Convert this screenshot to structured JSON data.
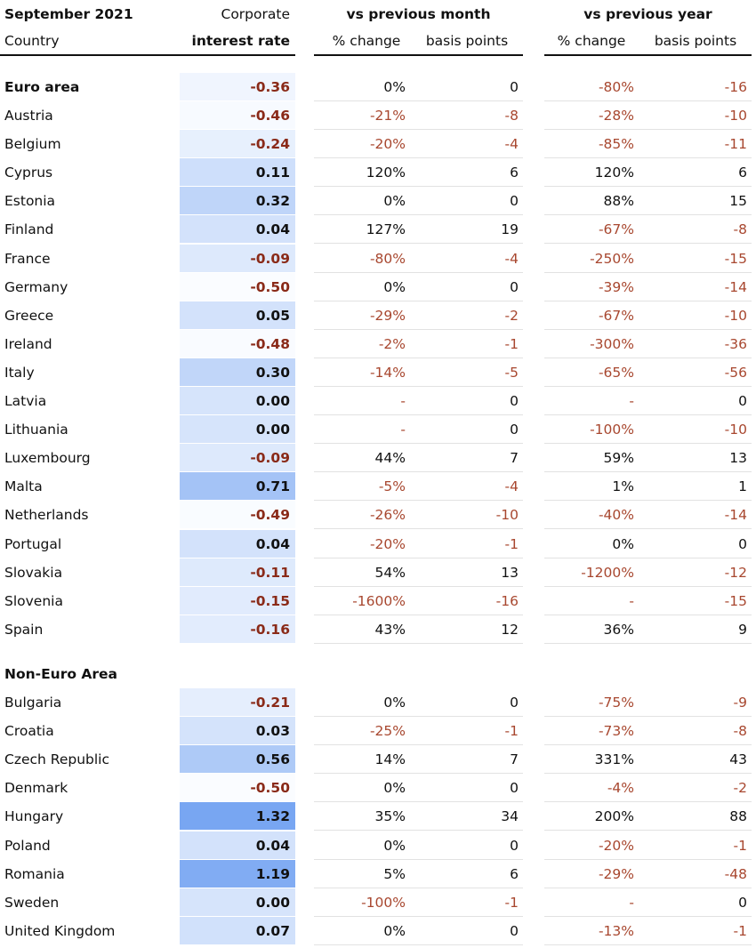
{
  "header": {
    "period": "September 2021",
    "country": "Country",
    "rate_top": "Corporate",
    "rate_bottom": "interest rate",
    "month_group": "vs previous month",
    "year_group": "vs previous year",
    "month_pct": "% change",
    "month_bp": "basis points",
    "year_pct": "% change",
    "year_bp": "basis points"
  },
  "euro_area": {
    "total": [
      "Euro area",
      "-0.36",
      "0%",
      "0",
      "-80%",
      "-16"
    ],
    "rows": [
      [
        "Austria",
        "-0.46",
        "-21%",
        "-8",
        "-28%",
        "-10"
      ],
      [
        "Belgium",
        "-0.24",
        "-20%",
        "-4",
        "-85%",
        "-11"
      ],
      [
        "Cyprus",
        "0.11",
        "120%",
        "6",
        "120%",
        "6"
      ],
      [
        "Estonia",
        "0.32",
        "0%",
        "0",
        "88%",
        "15"
      ],
      [
        "Finland",
        "0.04",
        "127%",
        "19",
        "-67%",
        "-8"
      ],
      [
        "France",
        "-0.09",
        "-80%",
        "-4",
        "-250%",
        "-15"
      ],
      [
        "Germany",
        "-0.50",
        "0%",
        "0",
        "-39%",
        "-14"
      ],
      [
        "Greece",
        "0.05",
        "-29%",
        "-2",
        "-67%",
        "-10"
      ],
      [
        "Ireland",
        "-0.48",
        "-2%",
        "-1",
        "-300%",
        "-36"
      ],
      [
        "Italy",
        "0.30",
        "-14%",
        "-5",
        "-65%",
        "-56"
      ],
      [
        "Latvia",
        "0.00",
        "-",
        "0",
        "-",
        "0"
      ],
      [
        "Lithuania",
        "0.00",
        "-",
        "0",
        "-100%",
        "-10"
      ],
      [
        "Luxembourg",
        "-0.09",
        "44%",
        "7",
        "59%",
        "13"
      ],
      [
        "Malta",
        "0.71",
        "-5%",
        "-4",
        "1%",
        "1"
      ],
      [
        "Netherlands",
        "-0.49",
        "-26%",
        "-10",
        "-40%",
        "-14"
      ],
      [
        "Portugal",
        "0.04",
        "-20%",
        "-1",
        "0%",
        "0"
      ],
      [
        "Slovakia",
        "-0.11",
        "54%",
        "13",
        "-1200%",
        "-12"
      ],
      [
        "Slovenia",
        "-0.15",
        "-1600%",
        "-16",
        "-",
        "-15"
      ],
      [
        "Spain",
        "-0.16",
        "43%",
        "12",
        "36%",
        "9"
      ]
    ]
  },
  "non_euro_area": {
    "heading": "Non-Euro Area",
    "rows": [
      [
        "Bulgaria",
        "-0.21",
        "0%",
        "0",
        "-75%",
        "-9"
      ],
      [
        "Croatia",
        "0.03",
        "-25%",
        "-1",
        "-73%",
        "-8"
      ],
      [
        "Czech Republic",
        "0.56",
        "14%",
        "7",
        "331%",
        "43"
      ],
      [
        "Denmark",
        "-0.50",
        "0%",
        "0",
        "-4%",
        "-2"
      ],
      [
        "Hungary",
        "1.32",
        "35%",
        "34",
        "200%",
        "88"
      ],
      [
        "Poland",
        "0.04",
        "0%",
        "0",
        "-20%",
        "-1"
      ],
      [
        "Romania",
        "1.19",
        "5%",
        "6",
        "-29%",
        "-48"
      ],
      [
        "Sweden",
        "0.00",
        "-100%",
        "-1",
        "-",
        "0"
      ],
      [
        "United Kingdom",
        "0.07",
        "0%",
        "0",
        "-13%",
        "-1"
      ]
    ]
  }
}
